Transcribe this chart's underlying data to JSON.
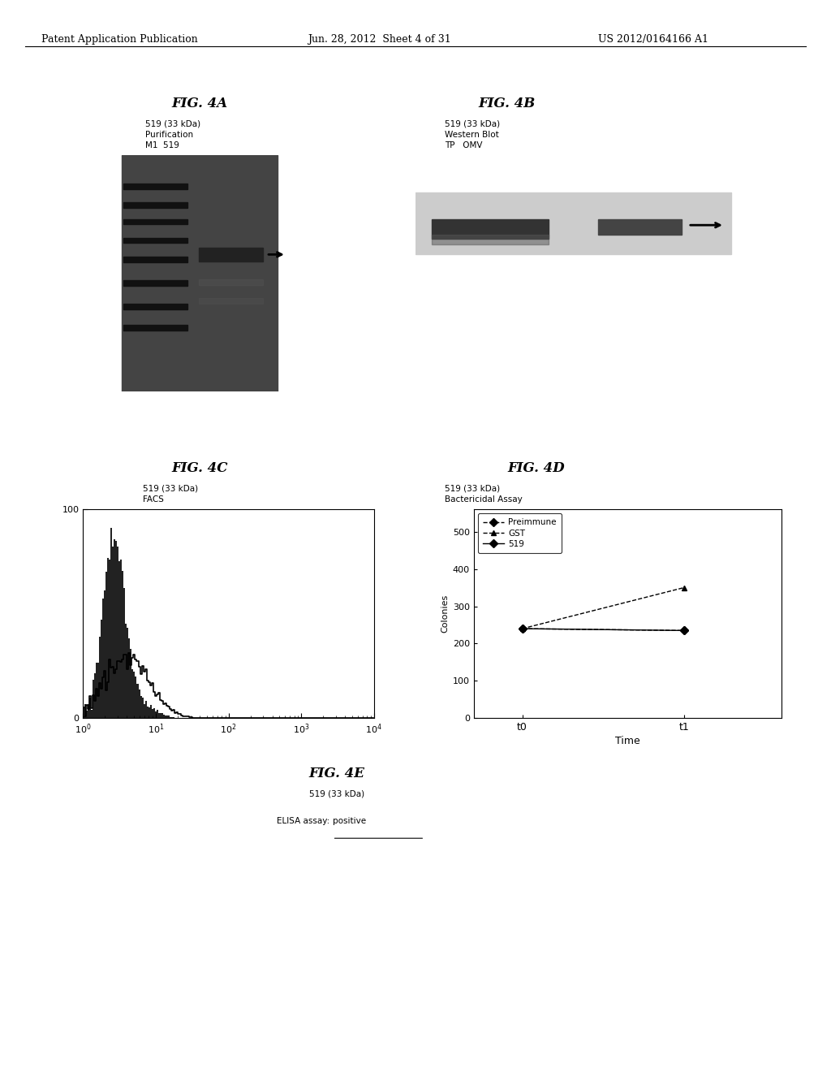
{
  "header_left": "Patent Application Publication",
  "header_center": "Jun. 28, 2012  Sheet 4 of 31",
  "header_right": "US 2012/0164166 A1",
  "fig4a_title": "FIG. 4A",
  "fig4a_sub1": "519 (33 kDa)",
  "fig4a_sub2": "Purification",
  "fig4a_sub3": "M1  519",
  "fig4b_title": "FIG. 4B",
  "fig4b_sub1": "519 (33 kDa)",
  "fig4b_sub2": "Western Blot",
  "fig4b_sub3": "TP   OMV",
  "fig4c_title": "FIG. 4C",
  "fig4c_sub1": "519 (33 kDa)",
  "fig4c_sub2": "FACS",
  "fig4d_title": "FIG. 4D",
  "fig4d_sub1": "519 (33 kDa)",
  "fig4d_sub2": "Bactericidal Assay",
  "fig4d_legend": [
    "Preimmune",
    "GST",
    "519"
  ],
  "fig4d_ylabel": "Colonies",
  "fig4d_xlabel": "Time",
  "fig4d_xtick_labels": [
    "t0",
    "t1"
  ],
  "fig4d_yticks": [
    0,
    100,
    200,
    300,
    400,
    500
  ],
  "fig4d_preimmune": [
    240,
    235
  ],
  "fig4d_gst": [
    240,
    350
  ],
  "fig4d_519": [
    240,
    235
  ],
  "fig4e_title": "FIG. 4E",
  "fig4e_sub1": "519 (33 kDa)",
  "fig4e_sub2_prefix": "ELISA assay: ",
  "fig4e_sub2_underlined": "positive",
  "bg_color": "#ffffff",
  "text_color": "#000000"
}
